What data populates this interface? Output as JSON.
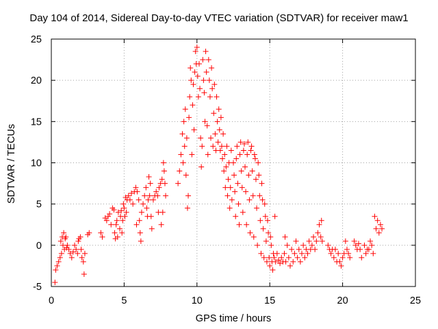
{
  "chart_data": {
    "type": "scatter",
    "title": "Day 104 of 2014, Sidereal Day-to-day VTEC variation (SDTVAR) for receiver maw1",
    "xlabel": "GPS time / hours",
    "ylabel": "SDTVAR / TECUs",
    "xlim": [
      0,
      25
    ],
    "ylim": [
      -5,
      25
    ],
    "x_ticks": [
      0,
      5,
      10,
      15,
      20,
      25
    ],
    "y_ticks": [
      -5,
      0,
      5,
      10,
      15,
      20,
      25
    ],
    "x_tick_labels": [
      "0",
      "5",
      "10",
      "15",
      "20",
      "25"
    ],
    "y_tick_labels": [
      "-5",
      "0",
      "5",
      "10",
      "15",
      "20",
      "25"
    ],
    "grid": true,
    "marker": "+",
    "color": "#ff0000",
    "series": [
      {
        "name": "SDTVAR",
        "points": [
          [
            0.25,
            -4.5
          ],
          [
            0.3,
            -3.0
          ],
          [
            0.4,
            -2.5
          ],
          [
            0.5,
            -2.0
          ],
          [
            0.6,
            -1.5
          ],
          [
            0.65,
            0.5
          ],
          [
            0.7,
            -1.0
          ],
          [
            0.75,
            1.0
          ],
          [
            0.8,
            0.0
          ],
          [
            0.85,
            1.5
          ],
          [
            0.9,
            -0.5
          ],
          [
            0.95,
            0.8
          ],
          [
            1.0,
            1.0
          ],
          [
            1.05,
            -0.3
          ],
          [
            1.1,
            0.0
          ],
          [
            1.2,
            -0.5
          ],
          [
            1.3,
            -1.0
          ],
          [
            1.4,
            -1.5
          ],
          [
            1.5,
            -0.8
          ],
          [
            1.6,
            0.0
          ],
          [
            1.7,
            -0.5
          ],
          [
            1.8,
            -1.0
          ],
          [
            1.85,
            0.5
          ],
          [
            1.9,
            0.8
          ],
          [
            2.0,
            1.0
          ],
          [
            2.05,
            -0.5
          ],
          [
            2.1,
            -1.5
          ],
          [
            2.2,
            -2.0
          ],
          [
            2.25,
            -3.5
          ],
          [
            2.3,
            -1.0
          ],
          [
            2.5,
            1.3
          ],
          [
            2.6,
            1.5
          ],
          [
            3.4,
            1.5
          ],
          [
            3.5,
            1.0
          ],
          [
            3.7,
            3.3
          ],
          [
            3.8,
            3.0
          ],
          [
            3.9,
            3.5
          ],
          [
            4.0,
            3.8
          ],
          [
            4.1,
            2.5
          ],
          [
            4.2,
            4.5
          ],
          [
            4.3,
            4.3
          ],
          [
            4.35,
            1.5
          ],
          [
            4.4,
            0.8
          ],
          [
            4.45,
            2.5
          ],
          [
            4.5,
            3.0
          ],
          [
            4.55,
            1.0
          ],
          [
            4.6,
            4.0
          ],
          [
            4.7,
            2.0
          ],
          [
            4.75,
            3.5
          ],
          [
            4.8,
            4.2
          ],
          [
            4.85,
            1.5
          ],
          [
            4.9,
            3.0
          ],
          [
            4.95,
            5.0
          ],
          [
            5.0,
            4.5
          ],
          [
            5.05,
            3.5
          ],
          [
            5.1,
            5.8
          ],
          [
            5.15,
            4.0
          ],
          [
            5.2,
            5.5
          ],
          [
            5.3,
            6.0
          ],
          [
            5.4,
            5.5
          ],
          [
            5.5,
            6.3
          ],
          [
            5.6,
            5.0
          ],
          [
            5.7,
            6.5
          ],
          [
            5.8,
            7.0
          ],
          [
            5.85,
            2.5
          ],
          [
            5.9,
            6.5
          ],
          [
            6.0,
            5.5
          ],
          [
            6.05,
            3.0
          ],
          [
            6.1,
            1.5
          ],
          [
            6.15,
            0.5
          ],
          [
            6.2,
            4.0
          ],
          [
            6.3,
            5.0
          ],
          [
            6.4,
            6.0
          ],
          [
            6.5,
            7.0
          ],
          [
            6.55,
            4.5
          ],
          [
            6.6,
            3.5
          ],
          [
            6.65,
            5.5
          ],
          [
            6.7,
            8.3
          ],
          [
            6.75,
            6.0
          ],
          [
            6.8,
            7.5
          ],
          [
            6.85,
            3.5
          ],
          [
            6.9,
            2.0
          ],
          [
            7.0,
            5.5
          ],
          [
            7.1,
            6.0
          ],
          [
            7.2,
            6.5
          ],
          [
            7.3,
            6.0
          ],
          [
            7.35,
            4.0
          ],
          [
            7.4,
            7.0
          ],
          [
            7.5,
            7.5
          ],
          [
            7.55,
            2.5
          ],
          [
            7.6,
            8.0
          ],
          [
            7.65,
            4.0
          ],
          [
            7.7,
            10.0
          ],
          [
            7.75,
            9.0
          ],
          [
            7.8,
            7.5
          ],
          [
            7.85,
            6.0
          ],
          [
            8.7,
            7.5
          ],
          [
            8.8,
            9.0
          ],
          [
            8.9,
            11.0
          ],
          [
            9.0,
            13.5
          ],
          [
            9.05,
            10.0
          ],
          [
            9.1,
            15.0
          ],
          [
            9.15,
            12.0
          ],
          [
            9.2,
            16.5
          ],
          [
            9.25,
            8.5
          ],
          [
            9.3,
            13.0
          ],
          [
            9.35,
            4.5
          ],
          [
            9.4,
            6.0
          ],
          [
            9.45,
            15.5
          ],
          [
            9.5,
            18.0
          ],
          [
            9.55,
            21.5
          ],
          [
            9.6,
            20.0
          ],
          [
            9.65,
            11.0
          ],
          [
            9.7,
            17.0
          ],
          [
            9.75,
            19.5
          ],
          [
            9.8,
            14.0
          ],
          [
            9.85,
            21.0
          ],
          [
            9.9,
            23.5
          ],
          [
            9.95,
            22.0
          ],
          [
            10.0,
            24.0
          ],
          [
            10.05,
            20.5
          ],
          [
            10.1,
            18.0
          ],
          [
            10.15,
            22.0
          ],
          [
            10.2,
            19.0
          ],
          [
            10.25,
            13.0
          ],
          [
            10.3,
            9.5
          ],
          [
            10.35,
            12.0
          ],
          [
            10.4,
            22.5
          ],
          [
            10.45,
            20.0
          ],
          [
            10.5,
            18.5
          ],
          [
            10.55,
            15.0
          ],
          [
            10.6,
            23.5
          ],
          [
            10.65,
            21.0
          ],
          [
            10.7,
            14.5
          ],
          [
            10.75,
            11.0
          ],
          [
            10.8,
            22.5
          ],
          [
            10.85,
            20.0
          ],
          [
            10.9,
            18.0
          ],
          [
            10.95,
            13.0
          ],
          [
            11.0,
            21.5
          ],
          [
            11.05,
            19.0
          ],
          [
            11.1,
            12.0
          ],
          [
            11.15,
            16.0
          ],
          [
            11.2,
            19.5
          ],
          [
            11.25,
            13.5
          ],
          [
            11.3,
            11.5
          ],
          [
            11.35,
            18.0
          ],
          [
            11.4,
            15.0
          ],
          [
            11.45,
            12.5
          ],
          [
            11.5,
            16.5
          ],
          [
            11.55,
            14.0
          ],
          [
            11.6,
            11.5
          ],
          [
            11.65,
            15.5
          ],
          [
            11.7,
            12.0
          ],
          [
            11.75,
            10.5
          ],
          [
            11.8,
            13.5
          ],
          [
            11.85,
            9.0
          ],
          [
            11.9,
            11.0
          ],
          [
            11.95,
            7.0
          ],
          [
            12.0,
            9.5
          ],
          [
            12.05,
            12.0
          ],
          [
            12.1,
            6.0
          ],
          [
            12.15,
            8.0
          ],
          [
            12.2,
            10.0
          ],
          [
            12.25,
            4.5
          ],
          [
            12.3,
            7.0
          ],
          [
            12.35,
            11.5
          ],
          [
            12.4,
            5.5
          ],
          [
            12.5,
            10.0
          ],
          [
            12.55,
            8.5
          ],
          [
            12.6,
            6.5
          ],
          [
            12.65,
            3.5
          ],
          [
            12.7,
            10.5
          ],
          [
            12.75,
            12.0
          ],
          [
            12.8,
            7.5
          ],
          [
            12.85,
            5.0
          ],
          [
            12.9,
            2.5
          ],
          [
            12.95,
            11.0
          ],
          [
            13.0,
            12.5
          ],
          [
            13.05,
            9.0
          ],
          [
            13.1,
            7.0
          ],
          [
            13.15,
            4.0
          ],
          [
            13.2,
            11.5
          ],
          [
            13.25,
            12.3
          ],
          [
            13.3,
            9.5
          ],
          [
            13.35,
            6.5
          ],
          [
            13.4,
            2.5
          ],
          [
            13.45,
            11.0
          ],
          [
            13.5,
            12.5
          ],
          [
            13.55,
            8.5
          ],
          [
            13.6,
            5.5
          ],
          [
            13.65,
            1.5
          ],
          [
            13.7,
            11.5
          ],
          [
            13.75,
            12.0
          ],
          [
            13.8,
            9.0
          ],
          [
            13.85,
            6.0
          ],
          [
            13.9,
            1.0
          ],
          [
            13.95,
            11.0
          ],
          [
            14.0,
            10.5
          ],
          [
            14.05,
            8.0
          ],
          [
            14.1,
            4.5
          ],
          [
            14.15,
            0.0
          ],
          [
            14.2,
            10.0
          ],
          [
            14.25,
            8.5
          ],
          [
            14.3,
            6.0
          ],
          [
            14.35,
            3.0
          ],
          [
            14.4,
            -1.0
          ],
          [
            14.45,
            7.5
          ],
          [
            14.5,
            5.5
          ],
          [
            14.55,
            2.0
          ],
          [
            14.6,
            -1.5
          ],
          [
            14.65,
            5.0
          ],
          [
            14.7,
            3.5
          ],
          [
            14.75,
            0.5
          ],
          [
            14.8,
            -2.0
          ],
          [
            14.85,
            3.0
          ],
          [
            14.9,
            1.5
          ],
          [
            14.95,
            -1.5
          ],
          [
            15.0,
            -2.5
          ],
          [
            15.05,
            1.0
          ],
          [
            15.1,
            0.0
          ],
          [
            15.15,
            -2.0
          ],
          [
            15.2,
            -3.0
          ],
          [
            15.25,
            -1.0
          ],
          [
            15.3,
            -1.5
          ],
          [
            15.35,
            3.5
          ],
          [
            15.4,
            -2.0
          ],
          [
            15.5,
            -1.0
          ],
          [
            15.6,
            -1.8
          ],
          [
            15.7,
            -2.2
          ],
          [
            15.8,
            -1.5
          ],
          [
            15.9,
            -2.0
          ],
          [
            16.0,
            -1.0
          ],
          [
            16.05,
            1.0
          ],
          [
            16.1,
            -2.0
          ],
          [
            16.2,
            0.0
          ],
          [
            16.3,
            -1.5
          ],
          [
            16.4,
            -2.5
          ],
          [
            16.5,
            -0.5
          ],
          [
            16.6,
            -2.0
          ],
          [
            16.7,
            -1.0
          ],
          [
            16.8,
            0.5
          ],
          [
            16.9,
            -1.5
          ],
          [
            17.0,
            -0.5
          ],
          [
            17.1,
            -2.0
          ],
          [
            17.2,
            -1.0
          ],
          [
            17.3,
            0.0
          ],
          [
            17.4,
            -1.5
          ],
          [
            17.5,
            -0.5
          ],
          [
            17.6,
            -1.0
          ],
          [
            17.7,
            0.5
          ],
          [
            17.8,
            -0.5
          ],
          [
            17.9,
            0.0
          ],
          [
            18.0,
            1.0
          ],
          [
            18.1,
            -0.5
          ],
          [
            18.2,
            0.5
          ],
          [
            18.3,
            1.5
          ],
          [
            18.4,
            2.5
          ],
          [
            18.5,
            1.0
          ],
          [
            18.55,
            3.0
          ],
          [
            18.6,
            0.5
          ],
          [
            19.0,
            0.0
          ],
          [
            19.1,
            -0.5
          ],
          [
            19.2,
            -1.0
          ],
          [
            19.3,
            -0.5
          ],
          [
            19.4,
            -1.5
          ],
          [
            19.5,
            -0.5
          ],
          [
            19.6,
            -2.0
          ],
          [
            19.7,
            -1.0
          ],
          [
            19.8,
            -2.0
          ],
          [
            19.9,
            -2.5
          ],
          [
            20.0,
            -1.5
          ],
          [
            20.1,
            -1.0
          ],
          [
            20.2,
            0.5
          ],
          [
            20.3,
            -0.5
          ],
          [
            20.4,
            -1.0
          ],
          [
            20.5,
            -1.5
          ],
          [
            20.8,
            0.5
          ],
          [
            20.9,
            0.0
          ],
          [
            21.0,
            -0.5
          ],
          [
            21.1,
            0.2
          ],
          [
            21.2,
            -0.5
          ],
          [
            21.3,
            -1.5
          ],
          [
            21.5,
            0.0
          ],
          [
            21.6,
            -1.0
          ],
          [
            21.7,
            -0.5
          ],
          [
            21.8,
            -0.5
          ],
          [
            21.9,
            0.5
          ],
          [
            22.0,
            0.0
          ],
          [
            22.1,
            -1.0
          ],
          [
            22.2,
            3.5
          ],
          [
            22.3,
            2.0
          ],
          [
            22.4,
            3.0
          ],
          [
            22.5,
            1.5
          ],
          [
            22.6,
            2.5
          ],
          [
            22.7,
            2.0
          ]
        ]
      }
    ]
  }
}
